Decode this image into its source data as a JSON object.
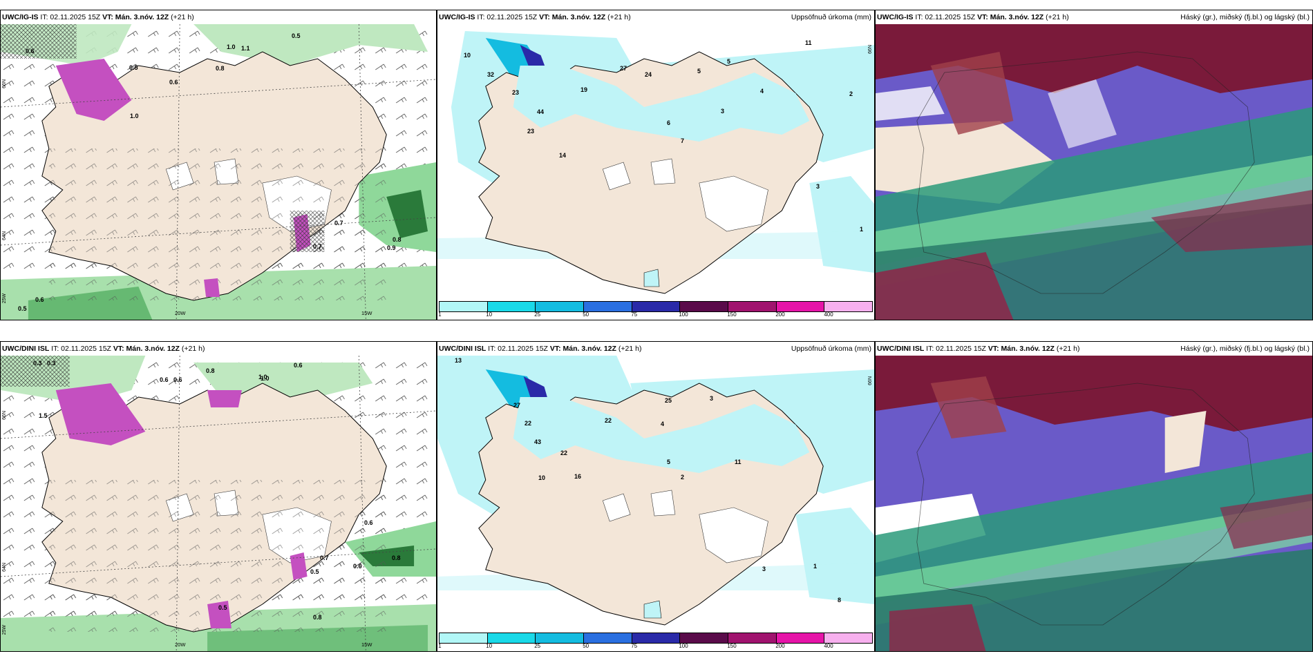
{
  "rows": [
    {
      "wind": {
        "model": "UWC/IG-IS",
        "it": "IT: 02.11.2025 15Z",
        "vt": "VT: Mán. 3.nóv. 12Z",
        "lead": "(+21 h)",
        "lat_labels": [
          "66N",
          "64N",
          "25W"
        ],
        "lon_labels": [
          "20W",
          "15W"
        ],
        "values": [
          "0.6",
          "0.5",
          "0.8",
          "1.0",
          "0.6",
          "1.0",
          "0.7",
          "0.9",
          "1.1",
          "0.7",
          "0.8",
          "0.5",
          "0.6",
          "0.5"
        ]
      },
      "precip": {
        "model": "UWC/IG-IS",
        "it": "IT: 02.11.2025 15Z",
        "vt": "VT: Mán. 3.nóv. 12Z",
        "lead": "(+21 h)",
        "field": "Uppsöfnuð úrkoma (mm)",
        "lat_label": "66N",
        "values": [
          "10",
          "32",
          "23",
          "44",
          "23",
          "14",
          "19",
          "27",
          "24",
          "6",
          "5",
          "3",
          "4",
          "7",
          "5",
          "11",
          "2",
          "3",
          "1"
        ]
      },
      "cloud": {
        "model": "UWC/IG-IS",
        "it": "IT: 02.11.2025 15Z",
        "vt": "VT: Mán. 3.nóv. 12Z",
        "lead": "(+21 h)",
        "field": "Háský (gr.), miðský (fj.bl.) og lágský (bl.)"
      }
    },
    {
      "wind": {
        "model": "UWC/DINI ISL",
        "it": "IT: 02.11.2025 15Z",
        "vt": "VT: Mán. 3.nóv. 12Z",
        "lead": "(+21 h)",
        "lat_labels": [
          "66N",
          "64N",
          "25W"
        ],
        "lon_labels": [
          "20W",
          "15W"
        ],
        "values": [
          "0.3",
          "0.3",
          "1.5",
          "0.6",
          "0.6",
          "0.8",
          "1.0",
          "0.6",
          "0.5",
          "0.6",
          "0.8",
          "0.7",
          "0.5",
          "0.8",
          "1.0",
          "0.6"
        ]
      },
      "precip": {
        "model": "UWC/DINI ISL",
        "it": "IT: 02.11.2025 15Z",
        "vt": "VT: Mán. 3.nóv. 12Z",
        "lead": "(+21 h)",
        "field": "Uppsöfnuð úrkoma (mm)",
        "lat_label": "66N",
        "values": [
          "13",
          "22",
          "27",
          "43",
          "22",
          "16",
          "10",
          "22",
          "25",
          "3",
          "4",
          "5",
          "11",
          "2",
          "8",
          "1",
          "3"
        ]
      },
      "cloud": {
        "model": "UWC/DINI ISL",
        "it": "IT: 02.11.2025 15Z",
        "vt": "VT: Mán. 3.nóv. 12Z",
        "lead": "(+21 h)",
        "field": "Háský (gr.), miðský (fj.bl.) og lágský (bl.)"
      }
    }
  ],
  "precip_legend": {
    "labels": [
      "1",
      "10",
      "25",
      "50",
      "75",
      "100",
      "150",
      "200",
      "400"
    ],
    "colors": [
      "#b2f7f7",
      "#1ad9e8",
      "#14bce0",
      "#2a6fe0",
      "#2a2aa8",
      "#5a0b4a",
      "#a0136e",
      "#e614a8",
      "#f7b0ee"
    ]
  },
  "colors": {
    "land": "#f3e6d8",
    "sea": "#ffffff",
    "precip_light": "#bff4f7",
    "wind_green": "#7fd48a",
    "wind_magenta": "#c450c0",
    "cloud_high": "#7a1a3a",
    "cloud_mid": "#5a5ac8",
    "cloud_low": "#1a8a6a"
  }
}
